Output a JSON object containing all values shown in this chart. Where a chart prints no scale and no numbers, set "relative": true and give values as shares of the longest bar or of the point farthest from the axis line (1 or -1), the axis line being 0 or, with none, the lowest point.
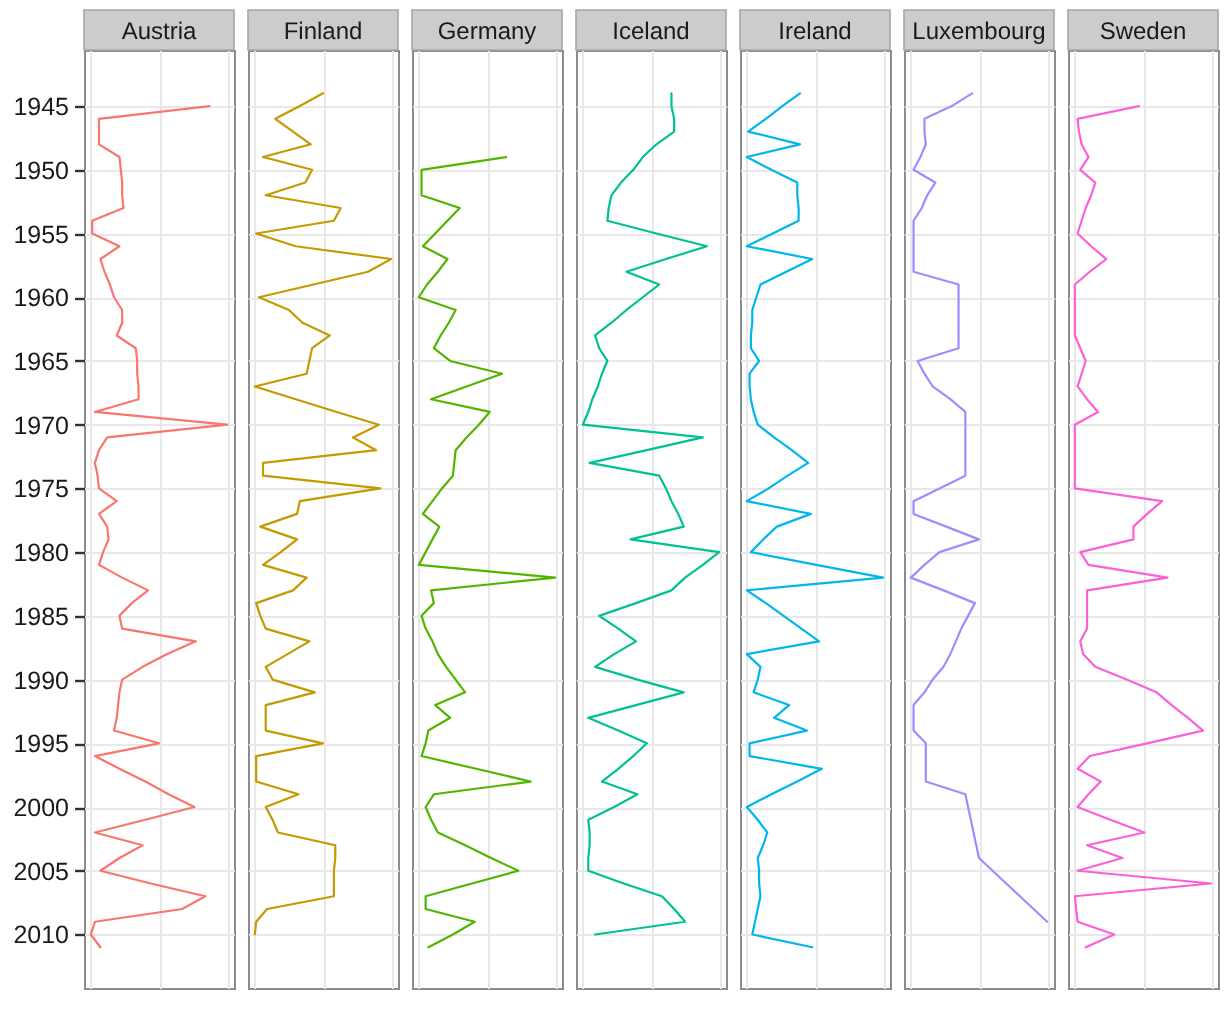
{
  "chart_data": [
    {
      "type": "line",
      "title": "Austria",
      "orientation": "horizontal",
      "relative": true,
      "color": "#f8766d",
      "grid": true,
      "tick_labels": "y",
      "ylim": [
        2014.2,
        1940.6
      ],
      "yticks": [
        1945,
        1950,
        1955,
        1960,
        1965,
        1970,
        1975,
        1980,
        1985,
        1990,
        1995,
        2000,
        2005,
        2010
      ],
      "x": [
        1945,
        1946,
        1947,
        1948,
        1949,
        1950,
        1951,
        1952,
        1953,
        1954,
        1955,
        1956,
        1957,
        1958,
        1959,
        1960,
        1961,
        1962,
        1963,
        1964,
        1965,
        1966,
        1967,
        1968,
        1969,
        1970,
        1971,
        1972,
        1973,
        1974,
        1975,
        1976,
        1977,
        1978,
        1979,
        1980,
        1981,
        1982,
        1983,
        1984,
        1985,
        1986,
        1987,
        1988,
        1989,
        1990,
        1991,
        1992,
        1993,
        1994,
        1995,
        1996,
        1997,
        1998,
        1999,
        2000,
        2001,
        2002,
        2003,
        2004,
        2005,
        2006,
        2007,
        2008,
        2009,
        2010,
        2011
      ],
      "values": [
        0.87,
        0.06,
        0.06,
        0.06,
        0.21,
        0.22,
        0.23,
        0.23,
        0.24,
        0.01,
        0.01,
        0.21,
        0.07,
        0.1,
        0.14,
        0.17,
        0.23,
        0.23,
        0.19,
        0.33,
        0.34,
        0.34,
        0.35,
        0.35,
        0.03,
        1,
        0.12,
        0.06,
        0.03,
        0.05,
        0.06,
        0.19,
        0.06,
        0.12,
        0.13,
        0.09,
        0.06,
        0.23,
        0.42,
        0.3,
        0.21,
        0.23,
        0.77,
        0.56,
        0.38,
        0.23,
        0.21,
        0.2,
        0.19,
        0.17,
        0.5,
        0.03,
        0.21,
        0.4,
        0.57,
        0.76,
        0.4,
        0.03,
        0.38,
        0.21,
        0.07,
        0.44,
        0.84,
        0.67,
        0.03,
        0,
        0.07
      ]
    },
    {
      "type": "line",
      "title": "Finland",
      "orientation": "horizontal",
      "relative": true,
      "color": "#c49a00",
      "grid": true,
      "tick_labels": false,
      "ylim": [
        2014.2,
        1940.6
      ],
      "yticks": [
        1945,
        1950,
        1955,
        1960,
        1965,
        1970,
        1975,
        1980,
        1985,
        1990,
        1995,
        2000,
        2005,
        2010
      ],
      "x": [
        1944,
        1945,
        1946,
        1947,
        1948,
        1949,
        1950,
        1951,
        1952,
        1953,
        1954,
        1955,
        1956,
        1957,
        1958,
        1959,
        1960,
        1961,
        1962,
        1963,
        1964,
        1965,
        1966,
        1967,
        1968,
        1969,
        1970,
        1971,
        1972,
        1973,
        1974,
        1975,
        1976,
        1977,
        1978,
        1979,
        1980,
        1981,
        1982,
        1983,
        1984,
        1985,
        1986,
        1987,
        1988,
        1989,
        1990,
        1991,
        1992,
        1993,
        1994,
        1995,
        1996,
        1997,
        1998,
        1999,
        2000,
        2001,
        2002,
        2003,
        2004,
        2005,
        2006,
        2007,
        2008,
        2009,
        2010
      ],
      "values": [
        0.5,
        0.33,
        0.15,
        0.28,
        0.41,
        0.06,
        0.42,
        0.37,
        0.08,
        0.63,
        0.58,
        0.01,
        0.3,
        1,
        0.83,
        0.43,
        0.03,
        0.25,
        0.35,
        0.55,
        0.42,
        0.4,
        0.38,
        0,
        0.3,
        0.6,
        0.91,
        0.72,
        0.89,
        0.06,
        0.06,
        0.92,
        0.33,
        0.31,
        0.04,
        0.31,
        0.19,
        0.06,
        0.38,
        0.28,
        0.01,
        0.04,
        0.08,
        0.4,
        0.24,
        0.08,
        0.13,
        0.44,
        0.08,
        0.08,
        0.08,
        0.5,
        0.01,
        0.01,
        0.01,
        0.32,
        0.08,
        0.13,
        0.17,
        0.59,
        0.59,
        0.58,
        0.58,
        0.58,
        0.09,
        0.01,
        0
      ]
    },
    {
      "type": "line",
      "title": "Germany",
      "orientation": "horizontal",
      "relative": true,
      "color": "#53b400",
      "grid": true,
      "tick_labels": false,
      "ylim": [
        2014.2,
        1940.6
      ],
      "yticks": [
        1945,
        1950,
        1955,
        1960,
        1965,
        1970,
        1975,
        1980,
        1985,
        1990,
        1995,
        2000,
        2005,
        2010
      ],
      "x": [
        1949,
        1950,
        1951,
        1952,
        1953,
        1954,
        1955,
        1956,
        1957,
        1958,
        1959,
        1960,
        1961,
        1962,
        1963,
        1964,
        1965,
        1966,
        1967,
        1968,
        1969,
        1970,
        1971,
        1972,
        1973,
        1974,
        1975,
        1976,
        1977,
        1978,
        1979,
        1980,
        1981,
        1982,
        1983,
        1984,
        1985,
        1986,
        1987,
        1988,
        1989,
        1990,
        1991,
        1992,
        1993,
        1994,
        1995,
        1996,
        1997,
        1998,
        1999,
        2000,
        2001,
        2002,
        2003,
        2004,
        2005,
        2006,
        2007,
        2008,
        2009,
        2010,
        2011
      ],
      "values": [
        0.64,
        0.02,
        0.02,
        0.02,
        0.3,
        0.21,
        0.12,
        0.03,
        0.21,
        0.14,
        0.06,
        0,
        0.27,
        0.22,
        0.16,
        0.11,
        0.23,
        0.61,
        0.35,
        0.09,
        0.52,
        0.44,
        0.35,
        0.27,
        0.26,
        0.25,
        0.17,
        0.1,
        0.03,
        0.15,
        0.1,
        0.05,
        0,
        1,
        0.09,
        0.11,
        0.02,
        0.05,
        0.1,
        0.14,
        0.2,
        0.27,
        0.34,
        0.12,
        0.23,
        0.07,
        0.05,
        0.02,
        0.42,
        0.82,
        0.11,
        0.05,
        0.09,
        0.14,
        0.34,
        0.53,
        0.73,
        0.39,
        0.05,
        0.05,
        0.41,
        0.25,
        0.07
      ]
    },
    {
      "type": "line",
      "title": "Iceland",
      "orientation": "horizontal",
      "relative": true,
      "color": "#00c094",
      "grid": true,
      "tick_labels": false,
      "ylim": [
        2014.2,
        1940.6
      ],
      "yticks": [
        1945,
        1950,
        1955,
        1960,
        1965,
        1970,
        1975,
        1980,
        1985,
        1990,
        1995,
        2000,
        2005,
        2010
      ],
      "x": [
        1944,
        1945,
        1946,
        1947,
        1948,
        1949,
        1950,
        1951,
        1952,
        1953,
        1954,
        1955,
        1956,
        1957,
        1958,
        1959,
        1960,
        1961,
        1962,
        1963,
        1964,
        1965,
        1966,
        1967,
        1968,
        1969,
        1970,
        1971,
        1972,
        1973,
        1974,
        1975,
        1976,
        1977,
        1978,
        1979,
        1980,
        1981,
        1982,
        1983,
        1984,
        1985,
        1986,
        1987,
        1988,
        1989,
        1990,
        1991,
        1992,
        1993,
        1994,
        1995,
        1996,
        1997,
        1998,
        1999,
        2000,
        2001,
        2002,
        2003,
        2004,
        2005,
        2006,
        2007,
        2008,
        2009,
        2010
      ],
      "values": [
        0.65,
        0.65,
        0.67,
        0.67,
        0.54,
        0.44,
        0.37,
        0.28,
        0.21,
        0.19,
        0.18,
        0.54,
        0.91,
        0.61,
        0.32,
        0.56,
        0.44,
        0.32,
        0.21,
        0.09,
        0.12,
        0.18,
        0.14,
        0.11,
        0.07,
        0.04,
        0,
        0.88,
        0.47,
        0.05,
        0.56,
        0.61,
        0.65,
        0.7,
        0.74,
        0.35,
        1,
        0.88,
        0.75,
        0.65,
        0.39,
        0.12,
        0.26,
        0.39,
        0.23,
        0.09,
        0.4,
        0.74,
        0.39,
        0.04,
        0.26,
        0.47,
        0.37,
        0.26,
        0.14,
        0.4,
        0.23,
        0.04,
        0.05,
        0.05,
        0.04,
        0.04,
        0.3,
        0.58,
        0.67,
        0.75,
        0.09
      ]
    },
    {
      "type": "line",
      "title": "Ireland",
      "orientation": "horizontal",
      "relative": true,
      "color": "#00b6eb",
      "grid": true,
      "tick_labels": false,
      "ylim": [
        2014.2,
        1940.6
      ],
      "yticks": [
        1945,
        1950,
        1955,
        1960,
        1965,
        1970,
        1975,
        1980,
        1985,
        1990,
        1995,
        2000,
        2005,
        2010
      ],
      "x": [
        1944,
        1945,
        1946,
        1947,
        1948,
        1949,
        1950,
        1951,
        1952,
        1953,
        1954,
        1955,
        1956,
        1957,
        1958,
        1959,
        1960,
        1961,
        1962,
        1963,
        1964,
        1965,
        1966,
        1967,
        1968,
        1969,
        1970,
        1971,
        1972,
        1973,
        1974,
        1975,
        1976,
        1977,
        1978,
        1979,
        1980,
        1981,
        1982,
        1983,
        1984,
        1985,
        1986,
        1987,
        1988,
        1989,
        1990,
        1991,
        1992,
        1993,
        1994,
        1995,
        1996,
        1997,
        1998,
        1999,
        2000,
        2001,
        2002,
        2003,
        2004,
        2005,
        2006,
        2007,
        2008,
        2009,
        2010,
        2011
      ],
      "values": [
        0.39,
        0.26,
        0.14,
        0.01,
        0.39,
        0,
        0.18,
        0.37,
        0.37,
        0.38,
        0.38,
        0.19,
        0,
        0.48,
        0.29,
        0.1,
        0.07,
        0.04,
        0.04,
        0.03,
        0.03,
        0.09,
        0.02,
        0.02,
        0.03,
        0.05,
        0.08,
        0.2,
        0.33,
        0.45,
        0.3,
        0.16,
        0,
        0.47,
        0.22,
        0.12,
        0.03,
        0.51,
        1,
        0,
        0.14,
        0.27,
        0.4,
        0.53,
        0,
        0.1,
        0.08,
        0.05,
        0.31,
        0.2,
        0.44,
        0.02,
        0.02,
        0.55,
        0.37,
        0.18,
        0,
        0.08,
        0.15,
        0.12,
        0.08,
        0.09,
        0.09,
        0.1,
        0.08,
        0.06,
        0.04,
        0.48
      ]
    },
    {
      "type": "line",
      "title": "Luxembourg",
      "orientation": "horizontal",
      "relative": true,
      "color": "#a58aff",
      "grid": true,
      "tick_labels": false,
      "ylim": [
        2014.2,
        1940.6
      ],
      "yticks": [
        1945,
        1950,
        1955,
        1960,
        1965,
        1970,
        1975,
        1980,
        1985,
        1990,
        1995,
        2000,
        2005,
        2010
      ],
      "x": [
        1944,
        1945,
        1946,
        1947,
        1948,
        1949,
        1950,
        1951,
        1952,
        1953,
        1954,
        1955,
        1956,
        1957,
        1958,
        1959,
        1960,
        1961,
        1962,
        1963,
        1964,
        1965,
        1966,
        1967,
        1968,
        1969,
        1970,
        1971,
        1972,
        1973,
        1974,
        1975,
        1976,
        1977,
        1978,
        1979,
        1980,
        1981,
        1982,
        1983,
        1984,
        1985,
        1986,
        1987,
        1988,
        1989,
        1990,
        1991,
        1992,
        1993,
        1994,
        1995,
        1996,
        1997,
        1998,
        1999,
        2000,
        2001,
        2002,
        2003,
        2004,
        2005,
        2006,
        2007,
        2008,
        2009
      ],
      "values": [
        0.45,
        0.3,
        0.1,
        0.1,
        0.11,
        0.07,
        0.02,
        0.18,
        0.12,
        0.08,
        0.02,
        0.02,
        0.02,
        0.02,
        0.02,
        0.35,
        0.35,
        0.35,
        0.35,
        0.35,
        0.35,
        0.05,
        0.1,
        0.16,
        0.29,
        0.4,
        0.4,
        0.4,
        0.4,
        0.4,
        0.4,
        0.21,
        0.02,
        0.02,
        0.26,
        0.5,
        0.21,
        0.1,
        0,
        0.24,
        0.47,
        0.42,
        0.37,
        0.33,
        0.29,
        0.24,
        0.16,
        0.1,
        0.02,
        0.02,
        0.02,
        0.11,
        0.11,
        0.11,
        0.11,
        0.4,
        0.42,
        0.44,
        0.46,
        0.48,
        0.5,
        0.6,
        0.7,
        0.8,
        0.9,
        1
      ]
    },
    {
      "type": "line",
      "title": "Sweden",
      "orientation": "horizontal",
      "relative": true,
      "color": "#fb61d7",
      "grid": true,
      "tick_labels": false,
      "ylim": [
        2014.2,
        1940.6
      ],
      "yticks": [
        1945,
        1950,
        1955,
        1960,
        1965,
        1970,
        1975,
        1980,
        1985,
        1990,
        1995,
        2000,
        2005,
        2010
      ],
      "x": [
        1945,
        1946,
        1947,
        1948,
        1949,
        1950,
        1951,
        1952,
        1953,
        1954,
        1955,
        1956,
        1957,
        1958,
        1959,
        1960,
        1961,
        1962,
        1963,
        1964,
        1965,
        1966,
        1967,
        1968,
        1969,
        1970,
        1971,
        1972,
        1973,
        1974,
        1975,
        1976,
        1977,
        1978,
        1979,
        1980,
        1981,
        1982,
        1983,
        1984,
        1985,
        1986,
        1987,
        1988,
        1989,
        1990,
        1991,
        1992,
        1993,
        1994,
        1995,
        1996,
        1997,
        1998,
        1999,
        2000,
        2001,
        2002,
        2003,
        2004,
        2005,
        2006,
        2007,
        2008,
        2009,
        2010,
        2011
      ],
      "values": [
        0.47,
        0.02,
        0.03,
        0.05,
        0.1,
        0.04,
        0.15,
        0.12,
        0.08,
        0.05,
        0.02,
        0.12,
        0.23,
        0.11,
        0,
        0,
        0,
        0,
        0,
        0.04,
        0.08,
        0.05,
        0.02,
        0.09,
        0.17,
        0,
        0,
        0,
        0,
        0,
        0,
        0.64,
        0.53,
        0.43,
        0.43,
        0.04,
        0.1,
        0.68,
        0.09,
        0.09,
        0.09,
        0.09,
        0.04,
        0.06,
        0.15,
        0.38,
        0.6,
        0.71,
        0.83,
        0.94,
        0.53,
        0.11,
        0.02,
        0.19,
        0.1,
        0.02,
        0.26,
        0.51,
        0.09,
        0.35,
        0.02,
        1,
        0,
        0.01,
        0.02,
        0.29,
        0.08
      ]
    }
  ]
}
